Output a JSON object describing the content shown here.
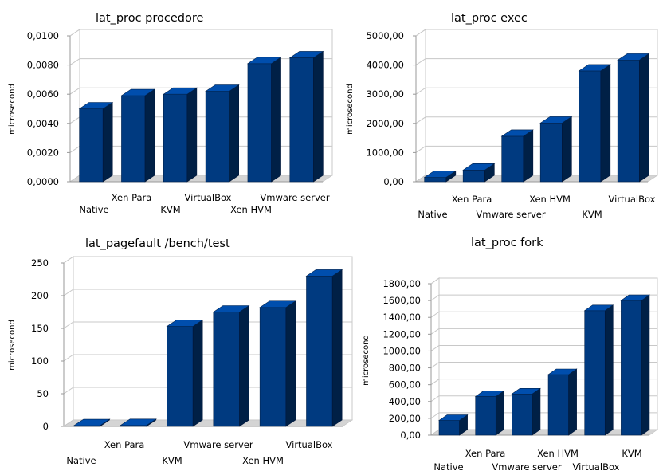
{
  "chart_data": [
    {
      "type": "bar",
      "title": "lat_proc procedore",
      "ylabel": "microsecond",
      "categories": [
        "Native",
        "Xen Para",
        "KVM",
        "VirtualBox",
        "Xen HVM",
        "Vmware server"
      ],
      "values": [
        0.005,
        0.0059,
        0.006,
        0.0062,
        0.0081,
        0.0085
      ],
      "ylim": [
        0,
        0.01
      ],
      "yticks": [
        "0,0000",
        "0,0020",
        "0,0040",
        "0,0060",
        "0,0080",
        "0,0100"
      ],
      "grid": true,
      "color": "#003a80"
    },
    {
      "type": "bar",
      "title": "lat_proc exec",
      "ylabel": "microsecond",
      "categories": [
        "Native",
        "Xen Para",
        "Vmware server",
        "Xen HVM",
        "KVM",
        "VirtualBox"
      ],
      "values": [
        150,
        400,
        1560,
        2010,
        3800,
        4170
      ],
      "ylim": [
        0,
        5000
      ],
      "yticks": [
        "0,00",
        "1000,00",
        "2000,00",
        "3000,00",
        "4000,00",
        "5000,00"
      ],
      "grid": true,
      "color": "#003a80"
    },
    {
      "type": "bar",
      "title": "lat_pagefault /bench/test",
      "ylabel": "microsecond",
      "categories": [
        "Native",
        "Xen Para",
        "KVM",
        "Vmware server",
        "Xen HVM",
        "VirtualBox"
      ],
      "values": [
        1.2,
        1.5,
        153,
        175,
        182,
        230
      ],
      "ylim": [
        0,
        250
      ],
      "yticks": [
        "0",
        "50",
        "100",
        "150",
        "200",
        "250"
      ],
      "grid": true,
      "color": "#003a80"
    },
    {
      "type": "bar",
      "title": "lat_proc fork",
      "ylabel": "microsecond",
      "categories": [
        "Native",
        "Xen Para",
        "Vmware server",
        "Xen HVM",
        "VirtualBox",
        "KVM"
      ],
      "values": [
        175,
        460,
        490,
        720,
        1480,
        1600
      ],
      "ylim": [
        0,
        1800
      ],
      "yticks": [
        "0,00",
        "200,00",
        "400,00",
        "600,00",
        "800,00",
        "1000,00",
        "1200,00",
        "1400,00",
        "1600,00",
        "1800,00"
      ],
      "grid": true,
      "color": "#003a80"
    }
  ]
}
